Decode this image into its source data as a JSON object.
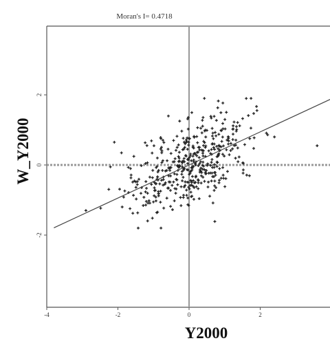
{
  "chart_data": {
    "type": "scatter",
    "title": "Moran's I= 0.4718",
    "xlabel": "Y2000",
    "ylabel": "W_Y2000",
    "xlim": [
      -4,
      4
    ],
    "ylim": [
      -4,
      4
    ],
    "x_ticks": [
      -4,
      -2,
      0,
      2
    ],
    "x_tick_labels": [
      "-4",
      "-2",
      "0",
      "2"
    ],
    "y_ticks": [
      -2,
      0,
      2
    ],
    "y_tick_labels": [
      "-2",
      "0",
      "2"
    ],
    "grid": false,
    "reference_lines": {
      "vertical_x": 0,
      "horizontal_y": 0
    },
    "fit_line": {
      "slope": 0.4718,
      "intercept": 0.0
    },
    "point_count": 450,
    "colors": {
      "points": "#222222",
      "fit_line": "#444444",
      "reference_lines": "#999999",
      "frame": "#555555"
    }
  }
}
